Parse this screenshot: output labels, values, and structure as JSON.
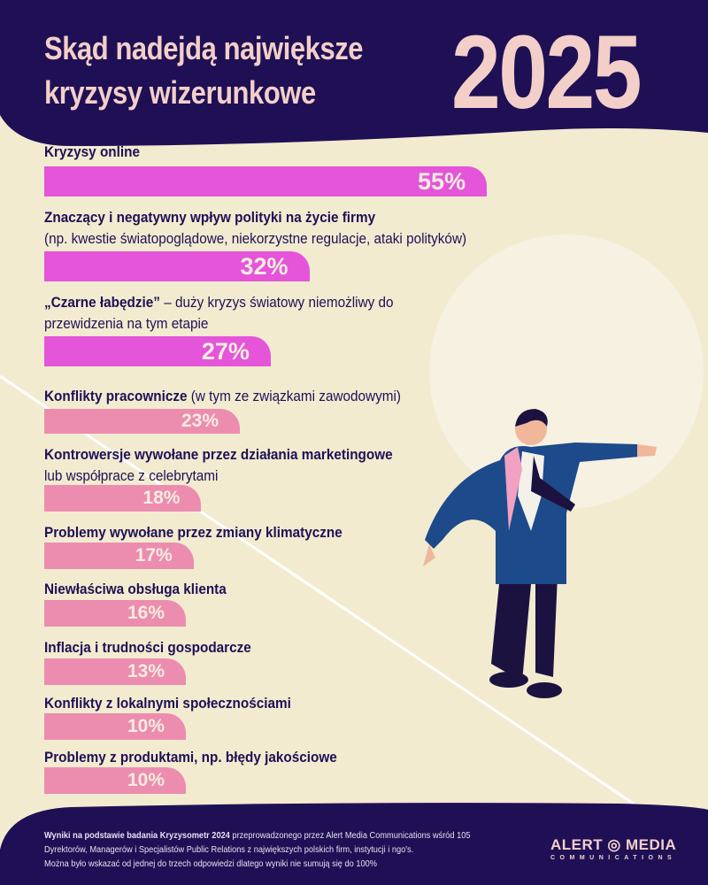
{
  "header": {
    "title": "Skąd nadejdą największe kryzysy wizerunkowe",
    "year": "2025"
  },
  "colors": {
    "navy": "#1f1055",
    "cream": "#f2ebd0",
    "magenta": "#e455d9",
    "pink": "#ec8db0",
    "title": "#f3cfc9"
  },
  "chart_data": {
    "type": "bar",
    "orientation": "horizontal",
    "title": "Skąd nadejdą największe kryzysy wizerunkowe 2025",
    "unit": "%",
    "items": [
      {
        "bold": "Kryzysy online",
        "rest": "",
        "line2": "",
        "value": 55,
        "label": "55%"
      },
      {
        "bold": "Znaczący i negatywny wpływ polityki na życie firmy",
        "rest": "",
        "line2": "(np. kwestie światopoglądowe, niekorzystne regulacje, ataki polityków)",
        "value": 32,
        "label": "32%"
      },
      {
        "bold": "„Czarne łabędzie”",
        "rest": " – duży kryzys światowy niemożliwy do",
        "line2": "przewidzenia na tym etapie",
        "value": 27,
        "label": "27%"
      },
      {
        "bold": "Konflikty pracownicze",
        "rest": " (w tym ze związkami zawodowymi)",
        "line2": "",
        "value": 23,
        "label": "23%"
      },
      {
        "bold": "Kontrowersje wywołane przez działania marketingowe",
        "rest": "",
        "line2": "lub współprace z celebrytami",
        "value": 18,
        "label": "18%"
      },
      {
        "bold": "Problemy wywołane przez zmiany klimatyczne",
        "rest": "",
        "line2": "",
        "value": 17,
        "label": "17%"
      },
      {
        "bold": "Niewłaściwa obsługa klienta",
        "rest": "",
        "line2": "",
        "value": 16,
        "label": "16%"
      },
      {
        "bold": "Inflacja i trudności gospodarcze",
        "rest": "",
        "line2": "",
        "value": 13,
        "label": "13%"
      },
      {
        "bold": "Konflikty z lokalnymi społecznościami",
        "rest": "",
        "line2": "",
        "value": 10,
        "label": "10%"
      },
      {
        "bold": "Problemy z produktami, np. błędy jakościowe",
        "rest": "",
        "line2": "",
        "value": 10,
        "label": "10%"
      }
    ]
  },
  "footer": {
    "bold": "Wyniki na podstawie badania Kryzysometr 2024",
    "line1": " przeprowadzonego przez Alert Media Communications wśród 105",
    "line2": "Dyrektorów, Managerów i Specjalistów Public Relations z największych polskich firm, instytucji i ngo's.",
    "line3": "Można było wskazać od jednej do trzech odpowiedzi dlatego wyniki nie sumują się do 100%",
    "logo_top": "ALERT ◎ MEDIA",
    "logo_bottom": "COMMUNICATIONS"
  }
}
